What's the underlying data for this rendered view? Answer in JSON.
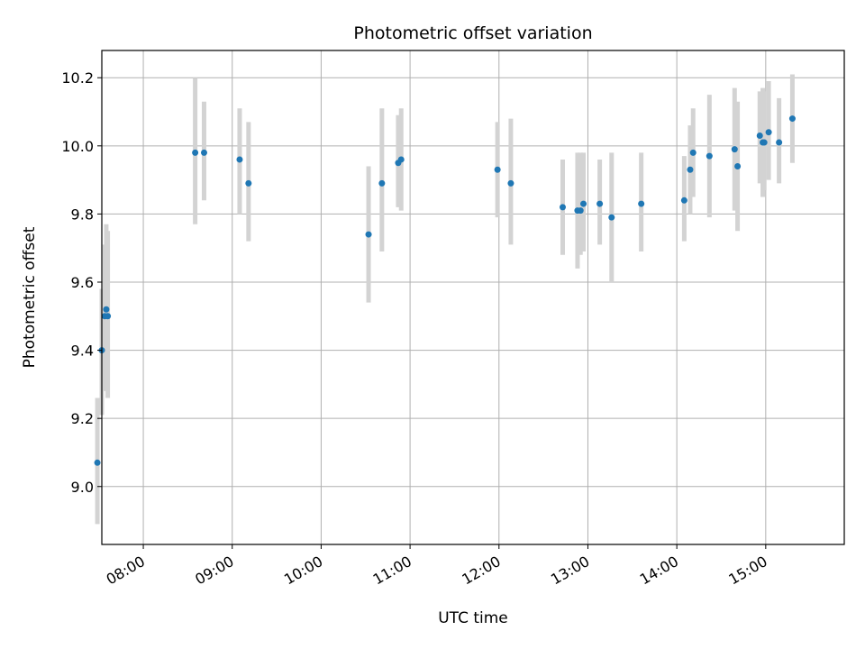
{
  "chart_data": {
    "type": "scatter",
    "title": "Photometric offset variation",
    "xlabel": "UTC time",
    "ylabel": "Photometric offset",
    "x_unit": "UTC time (HH:MM)",
    "xlim": [
      "07:32",
      "15:53"
    ],
    "ylim": [
      8.83,
      10.28
    ],
    "x_ticks": [
      "08:00",
      "09:00",
      "10:00",
      "11:00",
      "12:00",
      "13:00",
      "14:00",
      "15:00"
    ],
    "y_ticks": [
      9.0,
      9.2,
      9.4,
      9.6,
      9.8,
      10.0,
      10.2
    ],
    "y_tick_labels": [
      "9.0",
      "9.2",
      "9.4",
      "9.6",
      "9.8",
      "10.0",
      "10.2"
    ],
    "grid": true,
    "point_color": "#1f77b4",
    "errorbar_color": "#d3d3d3",
    "points": [
      {
        "time": "07:29",
        "value": 9.07,
        "low": 8.89,
        "high": 9.26
      },
      {
        "time": "07:32",
        "value": 9.4,
        "low": 9.21,
        "high": 9.58
      },
      {
        "time": "07:34",
        "value": 9.5,
        "low": 9.29,
        "high": 9.71
      },
      {
        "time": "07:35",
        "value": 9.52,
        "low": 9.28,
        "high": 9.77
      },
      {
        "time": "07:36",
        "value": 9.5,
        "low": 9.26,
        "high": 9.75
      },
      {
        "time": "08:35",
        "value": 9.98,
        "low": 9.77,
        "high": 10.2
      },
      {
        "time": "08:41",
        "value": 9.98,
        "low": 9.84,
        "high": 10.13
      },
      {
        "time": "09:05",
        "value": 9.96,
        "low": 9.8,
        "high": 10.11
      },
      {
        "time": "09:11",
        "value": 9.89,
        "low": 9.72,
        "high": 10.07
      },
      {
        "time": "10:32",
        "value": 9.74,
        "low": 9.54,
        "high": 9.94
      },
      {
        "time": "10:41",
        "value": 9.89,
        "low": 9.69,
        "high": 10.11
      },
      {
        "time": "10:52",
        "value": 9.95,
        "low": 9.82,
        "high": 10.09
      },
      {
        "time": "10:54",
        "value": 9.96,
        "low": 9.81,
        "high": 10.11
      },
      {
        "time": "11:59",
        "value": 9.93,
        "low": 9.79,
        "high": 10.07
      },
      {
        "time": "12:08",
        "value": 9.89,
        "low": 9.71,
        "high": 10.08
      },
      {
        "time": "12:43",
        "value": 9.82,
        "low": 9.68,
        "high": 9.96
      },
      {
        "time": "12:53",
        "value": 9.81,
        "low": 9.64,
        "high": 9.98
      },
      {
        "time": "12:55",
        "value": 9.81,
        "low": 9.68,
        "high": 9.98
      },
      {
        "time": "12:57",
        "value": 9.83,
        "low": 9.69,
        "high": 9.98
      },
      {
        "time": "13:08",
        "value": 9.83,
        "low": 9.71,
        "high": 9.96
      },
      {
        "time": "13:16",
        "value": 9.79,
        "low": 9.6,
        "high": 9.98
      },
      {
        "time": "13:36",
        "value": 9.83,
        "low": 9.69,
        "high": 9.98
      },
      {
        "time": "14:05",
        "value": 9.84,
        "low": 9.72,
        "high": 9.97
      },
      {
        "time": "14:09",
        "value": 9.93,
        "low": 9.8,
        "high": 10.06
      },
      {
        "time": "14:11",
        "value": 9.98,
        "low": 9.85,
        "high": 10.11
      },
      {
        "time": "14:22",
        "value": 9.97,
        "low": 9.79,
        "high": 10.15
      },
      {
        "time": "14:39",
        "value": 9.99,
        "low": 9.81,
        "high": 10.17
      },
      {
        "time": "14:41",
        "value": 9.94,
        "low": 9.75,
        "high": 10.13
      },
      {
        "time": "14:56",
        "value": 10.03,
        "low": 9.89,
        "high": 10.16
      },
      {
        "time": "14:58",
        "value": 10.01,
        "low": 9.85,
        "high": 10.17
      },
      {
        "time": "14:59",
        "value": 10.01,
        "low": 9.87,
        "high": 10.16
      },
      {
        "time": "15:02",
        "value": 10.04,
        "low": 9.9,
        "high": 10.19
      },
      {
        "time": "15:09",
        "value": 10.01,
        "low": 9.89,
        "high": 10.14
      },
      {
        "time": "15:18",
        "value": 10.08,
        "low": 9.95,
        "high": 10.21
      }
    ]
  }
}
